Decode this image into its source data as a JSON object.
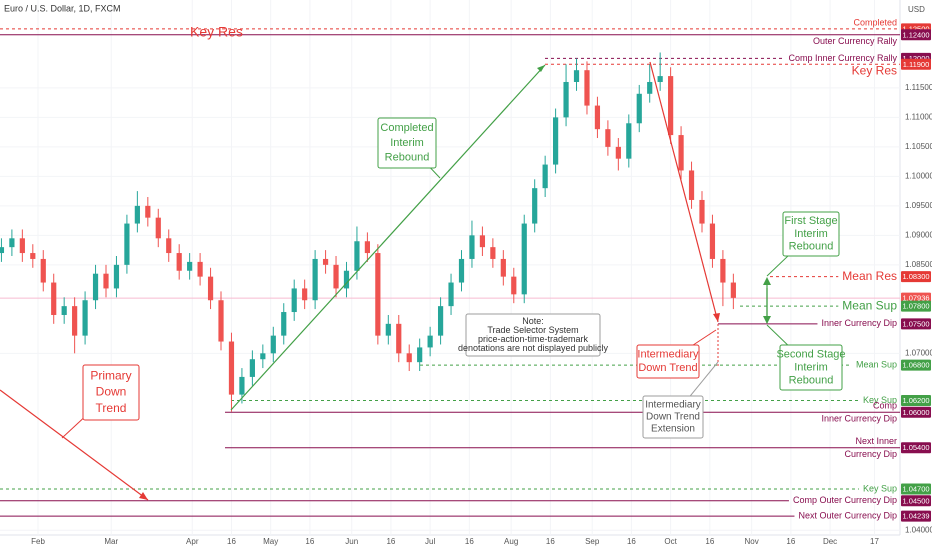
{
  "chart_data": {
    "type": "candlestick",
    "title": "Euro / U.S. Dollar, 1D, FXCM",
    "y_unit": "USD",
    "xlim": [
      16.45,
      360.75
    ],
    "ylim": [
      1.0392,
      1.1299
    ],
    "grid": true,
    "up_color": "#26a69a",
    "down_color": "#ef5350",
    "xticks": [
      {
        "value": 31,
        "label": "Feb"
      },
      {
        "value": 59,
        "label": "Mar"
      },
      {
        "value": 90,
        "label": "Apr"
      },
      {
        "value": 105,
        "label": "16"
      },
      {
        "value": 120,
        "label": "May"
      },
      {
        "value": 135,
        "label": "16"
      },
      {
        "value": 151,
        "label": "Jun"
      },
      {
        "value": 166,
        "label": "16"
      },
      {
        "value": 181,
        "label": "Jul"
      },
      {
        "value": 196,
        "label": "16"
      },
      {
        "value": 212,
        "label": "Aug"
      },
      {
        "value": 227,
        "label": "16"
      },
      {
        "value": 243,
        "label": "Sep"
      },
      {
        "value": 258,
        "label": "16"
      },
      {
        "value": 273,
        "label": "Oct"
      },
      {
        "value": 288,
        "label": "16"
      },
      {
        "value": 304,
        "label": "Nov"
      },
      {
        "value": 319,
        "label": "16"
      },
      {
        "value": 334,
        "label": "Dec"
      },
      {
        "value": 351,
        "label": "17"
      }
    ],
    "yticks": [
      {
        "value": 1.115,
        "label": "1.11500"
      },
      {
        "value": 1.11,
        "label": "1.11000"
      },
      {
        "value": 1.105,
        "label": "1.10500"
      },
      {
        "value": 1.1,
        "label": "1.10000"
      },
      {
        "value": 1.095,
        "label": "1.09500"
      },
      {
        "value": 1.09,
        "label": "1.09000"
      },
      {
        "value": 1.085,
        "label": "1.08500"
      },
      {
        "value": 1.07,
        "label": "1.07000"
      },
      {
        "value": 1.04,
        "label": "1.04000"
      }
    ],
    "candles": {
      "x": [
        17,
        21,
        25,
        29,
        33,
        37,
        41,
        45,
        49,
        53,
        57,
        61,
        65,
        69,
        73,
        77,
        81,
        85,
        89,
        93,
        97,
        101,
        105,
        109,
        113,
        117,
        121,
        125,
        129,
        133,
        137,
        141,
        145,
        149,
        153,
        157,
        161,
        165,
        169,
        173,
        177,
        181,
        185,
        189,
        193,
        197,
        201,
        205,
        209,
        213,
        217,
        221,
        225,
        229,
        233,
        237,
        241,
        245,
        249,
        253,
        257,
        261,
        265,
        269,
        273,
        277,
        281,
        285,
        289,
        293,
        297
      ],
      "open": [
        1.087,
        1.088,
        1.0895,
        1.087,
        1.086,
        1.082,
        1.0765,
        1.078,
        1.073,
        1.079,
        1.0835,
        1.081,
        1.085,
        1.092,
        1.095,
        1.093,
        1.0895,
        1.087,
        1.084,
        1.0855,
        1.083,
        1.079,
        1.072,
        1.063,
        1.066,
        1.069,
        1.07,
        1.073,
        1.077,
        1.081,
        1.079,
        1.086,
        1.085,
        1.081,
        1.084,
        1.089,
        1.087,
        1.073,
        1.075,
        1.07,
        1.0685,
        1.071,
        1.073,
        1.078,
        1.082,
        1.086,
        1.09,
        1.088,
        1.086,
        1.083,
        1.08,
        1.092,
        1.098,
        1.102,
        1.11,
        1.116,
        1.118,
        1.112,
        1.108,
        1.105,
        1.103,
        1.109,
        1.114,
        1.116,
        1.117,
        1.107,
        1.101,
        1.096,
        1.092,
        1.086,
        1.082
      ],
      "high": [
        1.0895,
        1.091,
        1.091,
        1.0885,
        1.0875,
        1.0835,
        1.0795,
        1.0795,
        1.0805,
        1.085,
        1.085,
        1.0865,
        1.0935,
        1.0975,
        1.0965,
        1.0945,
        1.091,
        1.0885,
        1.087,
        1.087,
        1.0845,
        1.0805,
        1.0735,
        1.0675,
        1.0705,
        1.0715,
        1.0745,
        1.0785,
        1.0825,
        1.0825,
        1.0875,
        1.0875,
        1.0865,
        1.0855,
        1.0915,
        1.0905,
        1.0885,
        1.0765,
        1.0765,
        1.0715,
        1.0725,
        1.0745,
        1.0795,
        1.0835,
        1.0875,
        1.0925,
        1.0915,
        1.0895,
        1.0875,
        1.0845,
        1.0935,
        1.0995,
        1.1035,
        1.1115,
        1.119,
        1.12,
        1.1195,
        1.1135,
        1.1095,
        1.1065,
        1.1105,
        1.1155,
        1.119,
        1.121,
        1.1185,
        1.1085,
        1.1025,
        1.0975,
        1.0935,
        1.0875,
        1.0835
      ],
      "low": [
        1.0855,
        1.0865,
        1.0855,
        1.0845,
        1.0805,
        1.075,
        1.075,
        1.07,
        1.0715,
        1.0775,
        1.0795,
        1.0795,
        1.0835,
        1.0905,
        1.0915,
        1.088,
        1.0855,
        1.0825,
        1.0825,
        1.0815,
        1.0775,
        1.0705,
        1.0601,
        1.0615,
        1.0645,
        1.0675,
        1.0685,
        1.0715,
        1.0755,
        1.0775,
        1.0775,
        1.0835,
        1.0795,
        1.0795,
        1.0825,
        1.0855,
        1.0715,
        1.0715,
        1.0685,
        1.067,
        1.067,
        1.0695,
        1.0715,
        1.0765,
        1.0805,
        1.0845,
        1.0865,
        1.0845,
        1.0815,
        1.0785,
        1.0785,
        1.0905,
        1.0965,
        1.1005,
        1.1085,
        1.1145,
        1.1105,
        1.1065,
        1.1035,
        1.101,
        1.1015,
        1.1075,
        1.1125,
        1.1145,
        1.1055,
        1.0995,
        1.0945,
        1.0905,
        1.0845,
        1.078,
        1.0775
      ],
      "close": [
        1.088,
        1.0895,
        1.087,
        1.086,
        1.082,
        1.0765,
        1.078,
        1.073,
        1.079,
        1.0835,
        1.081,
        1.085,
        1.092,
        1.095,
        1.093,
        1.0895,
        1.087,
        1.084,
        1.0855,
        1.083,
        1.079,
        1.072,
        1.063,
        1.066,
        1.069,
        1.07,
        1.073,
        1.077,
        1.081,
        1.079,
        1.086,
        1.085,
        1.081,
        1.084,
        1.089,
        1.087,
        1.073,
        1.075,
        1.07,
        1.0685,
        1.071,
        1.073,
        1.078,
        1.082,
        1.086,
        1.09,
        1.088,
        1.086,
        1.083,
        1.08,
        1.092,
        1.098,
        1.102,
        1.11,
        1.116,
        1.118,
        1.112,
        1.108,
        1.105,
        1.103,
        1.109,
        1.114,
        1.116,
        1.117,
        1.107,
        1.101,
        1.096,
        1.092,
        1.086,
        1.082,
        1.0794
      ]
    },
    "levels": [
      {
        "price": {
          "value": 1.125,
          "label": "1.12500"
        },
        "name": [
          "Completed"
        ],
        "color": "#e53935",
        "style": "dashed"
      },
      {
        "price": {
          "value": 1.124,
          "label": "1.12400"
        },
        "name": [
          "Outer Currency Rally"
        ],
        "color": "#880e4f",
        "style": "solid"
      },
      {
        "price": {
          "value": 1.12,
          "label": "1.12000"
        },
        "name": [
          "Comp Inner Currency Rally"
        ],
        "color": "#880e4f",
        "style": "dashed"
      },
      {
        "price": {
          "value": 1.119,
          "label": "1.11900"
        },
        "name": [
          "Key Res"
        ],
        "color": "#e53935",
        "style": "dashed"
      },
      {
        "price": {
          "value": 1.083,
          "label": "1.08300"
        },
        "name": [
          "Mean Res"
        ],
        "color": "#e53935",
        "style": "dashed"
      },
      {
        "price": {
          "value": 1.07936,
          "label": "1.07936"
        },
        "name": [],
        "color": "#ef5350",
        "style": "price"
      },
      {
        "price": {
          "value": 1.078,
          "label": "1.07800"
        },
        "name": [
          "Mean Sup"
        ],
        "color": "#43a047",
        "style": "dashed"
      },
      {
        "price": {
          "value": 1.075,
          "label": "1.07500"
        },
        "name": [
          "Inner Currency Dip"
        ],
        "color": "#880e4f",
        "style": "solid"
      },
      {
        "price": {
          "value": 1.068,
          "label": "1.06800"
        },
        "name": [
          "Mean Sup"
        ],
        "color": "#43a047",
        "style": "dashed"
      },
      {
        "price": {
          "value": 1.062,
          "label": "1.06200"
        },
        "name": [
          "Key Sup"
        ],
        "color": "#43a047",
        "style": "dashed"
      },
      {
        "price": {
          "value": 1.06,
          "label": "1.06000"
        },
        "name": [
          "Comp",
          "Inner Currency Dip"
        ],
        "color": "#880e4f",
        "style": "solid"
      },
      {
        "price": {
          "value": 1.054,
          "label": "1.05400"
        },
        "name": [
          "Next Inner",
          "Currency Dip"
        ],
        "color": "#880e4f",
        "style": "solid"
      },
      {
        "price": {
          "value": 1.047,
          "label": "1.04700"
        },
        "name": [
          "Key Sup"
        ],
        "color": "#43a047",
        "style": "dashed"
      },
      {
        "price": {
          "value": 1.045,
          "label": "1.04500"
        },
        "name": [
          "Comp Outer Currency Dip"
        ],
        "color": "#880e4f",
        "style": "solid"
      },
      {
        "price": {
          "value": 1.04239,
          "label": "1.04239"
        },
        "name": [
          "Next Outer Currency Dip"
        ],
        "color": "#880e4f",
        "style": "solid"
      }
    ],
    "annotations": {
      "key_res": "Key Res",
      "completed_interim_rebound": [
        "Completed",
        "Interim",
        "Rebound"
      ],
      "primary_down_trend": [
        "Primary",
        "Down",
        "Trend"
      ],
      "intermediary_down_trend": [
        "Intermediary",
        "Down Trend"
      ],
      "intermediary_extension": [
        "Intermediary",
        "Down Trend",
        "Extension"
      ],
      "first_stage": [
        "First Stage",
        "Interim",
        "Rebound"
      ],
      "second_stage": [
        "Second Stage",
        "Interim",
        "Rebound"
      ],
      "note": [
        "Note:",
        "Trade Selector System",
        "price-action-time-trademark",
        "denotations are not displayed publicly"
      ]
    }
  }
}
